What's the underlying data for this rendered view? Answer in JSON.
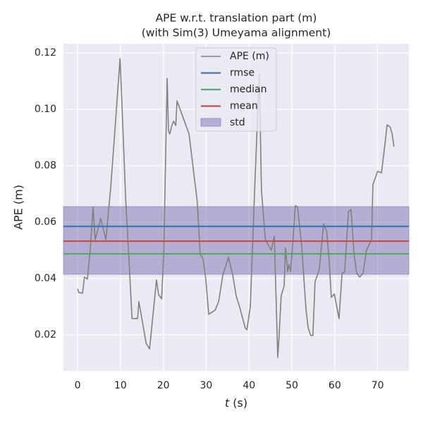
{
  "chart_data": {
    "type": "line",
    "title": "APE w.r.t. translation part (m)",
    "subtitle": "(with Sim(3) Umeyama alignment)",
    "xlabel": "t (s)",
    "ylabel": "APE (m)",
    "x": [
      0,
      0.3,
      1.15,
      1.6,
      2.3,
      3.0,
      3.6,
      4.1,
      5.4,
      6.6,
      7.7,
      8.7,
      9.9,
      10.4,
      11.2,
      12,
      12.7,
      14,
      14.3,
      16,
      16.8,
      18.4,
      18.9,
      19.6,
      20.1,
      20.9,
      21.2,
      21.5,
      22,
      22.4,
      22.9,
      23.2,
      26,
      27.9,
      28.6,
      29.3,
      29.9,
      30.6,
      32.1,
      32.9,
      33.9,
      35.2,
      36.2,
      37,
      37.8,
      39.1,
      39.5,
      40.3,
      41.3,
      42.4,
      42.9,
      43.8,
      45.2,
      45.9,
      46.7,
      47,
      47.5,
      48.2,
      48.5,
      49,
      49.3,
      49.7,
      50.2,
      50.8,
      51.3,
      52.3,
      53.3,
      53.8,
      54.4,
      54.9,
      55.4,
      56.4,
      57.4,
      58.1,
      58.7,
      59.2,
      59.9,
      61,
      61.7,
      62.3,
      63.2,
      63.8,
      64.5,
      65.1,
      65.8,
      66.6,
      67.4,
      68.6,
      68.9,
      70,
      70.9,
      71.7,
      72.2,
      72.9,
      73.4,
      73.8
    ],
    "series": [
      {
        "name": "APE (m)",
        "color": "#808080",
        "values": [
          0.0363,
          0.035,
          0.0348,
          0.0405,
          0.0398,
          0.0513,
          0.0653,
          0.0538,
          0.0613,
          0.0538,
          0.0718,
          0.0925,
          0.118,
          0.1,
          0.0688,
          0.0463,
          0.0258,
          0.0258,
          0.0318,
          0.017,
          0.015,
          0.0395,
          0.0343,
          0.0328,
          0.0488,
          0.111,
          0.0925,
          0.0913,
          0.0943,
          0.0958,
          0.0943,
          0.103,
          0.0913,
          0.0675,
          0.0488,
          0.0468,
          0.04,
          0.0273,
          0.0288,
          0.0318,
          0.0413,
          0.0475,
          0.0413,
          0.0338,
          0.03,
          0.0225,
          0.0218,
          0.03,
          0.0713,
          0.1125,
          0.0713,
          0.0538,
          0.05,
          0.055,
          0.012,
          0.0193,
          0.0338,
          0.0375,
          0.0508,
          0.0425,
          0.045,
          0.0425,
          0.0525,
          0.0658,
          0.0655,
          0.0513,
          0.0288,
          0.0225,
          0.0198,
          0.0198,
          0.0388,
          0.0433,
          0.0593,
          0.0568,
          0.0463,
          0.0333,
          0.0345,
          0.0258,
          0.0418,
          0.0423,
          0.0638,
          0.0645,
          0.0488,
          0.042,
          0.0405,
          0.0418,
          0.05,
          0.0538,
          0.0733,
          0.078,
          0.0775,
          0.0875,
          0.0945,
          0.0938,
          0.0913,
          0.0868
        ]
      }
    ],
    "reference_lines": [
      {
        "name": "rmse",
        "color": "#4c72b0",
        "value": 0.0585
      },
      {
        "name": "median",
        "color": "#55a868",
        "value": 0.04875
      },
      {
        "name": "mean",
        "color": "#c44e52",
        "value": 0.05325
      }
    ],
    "std_band": {
      "name": "std",
      "color": "#8172b2",
      "lower": 0.0415,
      "upper": 0.0655
    },
    "xlim": [
      -3.3,
      77.3
    ],
    "ylim": [
      0.00725,
      0.1233
    ],
    "xticks": [
      0,
      10,
      20,
      30,
      40,
      50,
      60,
      70
    ],
    "yticks": [
      0.02,
      0.04,
      0.06,
      0.08,
      {
        "value": 0.1,
        "label": "0.10"
      },
      0.12
    ],
    "grid": true,
    "legend": "upper center"
  }
}
